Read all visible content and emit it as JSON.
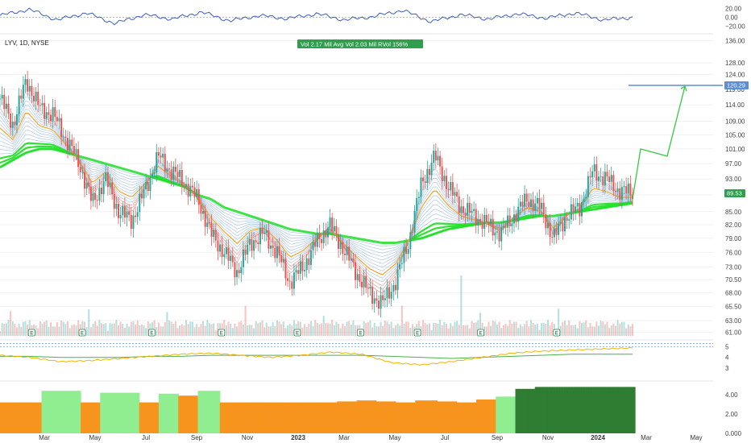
{
  "symbol_label": "LYV, 1D, NYSE",
  "stats": {
    "text": "Vol 2.17 Mil   Avg Vol 2.03 Mil   RVol 156%",
    "color": "#2e9e4f"
  },
  "last_price_label": "89.53",
  "target_label": "120.29",
  "colors": {
    "up": "#26a69a",
    "down": "#ef5350",
    "ribbon_green": "#22e02a",
    "ribbon_red": "#e06060",
    "ribbon_blue": "#7da7d9",
    "ema_orange": "#f5a623",
    "target_line": "#5b8fd6",
    "projection": "#35c940",
    "osc_line": "#3b5fc0",
    "bar_orange": "#f7941d",
    "bar_lightgreen": "#90ee90",
    "bar_darkgreen": "#2e7d32"
  },
  "chart_data": [
    {
      "type": "line",
      "name": "oscillator",
      "y_ticks": [
        "20.00",
        "0.00",
        "−20.00"
      ],
      "ylim": [
        -30,
        30
      ],
      "x": [
        0,
        0.04,
        0.08,
        0.12,
        0.16,
        0.2,
        0.24,
        0.28,
        0.32,
        0.36,
        0.4,
        0.44,
        0.48,
        0.52,
        0.56,
        0.6,
        0.64,
        0.68,
        0.72,
        0.76,
        0.8,
        0.84,
        0.88
      ],
      "values": [
        4,
        18,
        -6,
        10,
        -14,
        6,
        -4,
        12,
        -8,
        4,
        -3,
        8,
        -6,
        2,
        16,
        -10,
        6,
        -4,
        8,
        -2,
        10,
        -6,
        0
      ]
    },
    {
      "type": "candlestick",
      "name": "price",
      "x_ticks": [
        "Mar",
        "May",
        "Jul",
        "Sep",
        "Nov",
        "2023",
        "Mar",
        "May",
        "Jul",
        "Sep",
        "Nov",
        "2024",
        "Mar",
        "May"
      ],
      "y_ticks": [
        "136.00",
        "128.00",
        "124.00",
        "119.00",
        "114.00",
        "109.00",
        "105.00",
        "101.00",
        "97.00",
        "93.00",
        "89.00",
        "85.00",
        "82.00",
        "79.00",
        "76.00",
        "73.00",
        "70.50",
        "68.00",
        "65.50",
        "63.00",
        "61.00"
      ],
      "scale": "log",
      "ylim": [
        60,
        138
      ],
      "series": [
        {
          "name": "close",
          "values": [
            116,
            108,
            122,
            113,
            111,
            104,
            97,
            87,
            93,
            85,
            83,
            90,
            99,
            95,
            92,
            88,
            80,
            76,
            72,
            78,
            80,
            76,
            70,
            73,
            78,
            82,
            77,
            72,
            68,
            66,
            70,
            78,
            92,
            99,
            91,
            86,
            84,
            82,
            80,
            84,
            88,
            86,
            79,
            84,
            86,
            95,
            93,
            90,
            89.53
          ]
        },
        {
          "name": "ribbon_slow",
          "values": [
            96,
            98,
            100,
            101,
            101,
            100,
            99,
            98,
            97,
            96,
            95,
            94,
            93,
            92,
            91,
            89,
            88,
            86,
            85,
            84,
            83,
            82,
            81,
            80.5,
            80,
            80,
            79.5,
            79,
            78.5,
            78,
            78,
            78.5,
            79,
            80,
            81,
            81.5,
            82,
            82.5,
            82.5,
            83,
            83.5,
            84,
            84,
            84.5,
            85,
            85.5,
            86,
            86.5,
            87
          ]
        }
      ],
      "events": [
        {
          "label": "E",
          "x": 0.05
        },
        {
          "label": "E",
          "x": 0.13
        },
        {
          "label": "E",
          "x": 0.24
        },
        {
          "label": "E",
          "x": 0.35
        },
        {
          "label": "E",
          "x": 0.47
        },
        {
          "label": "E",
          "x": 0.57
        },
        {
          "label": "E",
          "x": 0.66
        },
        {
          "label": "E",
          "x": 0.76
        },
        {
          "label": "E",
          "x": 0.88
        }
      ],
      "target": {
        "value": 120.29
      },
      "projection": {
        "values": [
          88,
          101,
          99,
          120
        ]
      }
    },
    {
      "type": "line",
      "name": "relative_strength",
      "y_ticks": [
        "5",
        "4",
        "3"
      ],
      "ylim": [
        2,
        5.5
      ],
      "series": [
        {
          "name": "rs",
          "values": [
            4.2,
            4.0,
            3.6,
            3.7,
            3.9,
            4.1,
            4.3,
            4.4,
            4.2,
            4.0,
            4.2,
            4.5,
            4.3,
            3.5,
            3.3,
            3.6,
            4.0,
            4.4,
            4.6,
            4.7,
            4.8,
            4.9
          ]
        },
        {
          "name": "rs_ma",
          "values": [
            4.1,
            4.1,
            4.0,
            4.0,
            4.0,
            4.1,
            4.1,
            4.2,
            4.2,
            4.2,
            4.2,
            4.2,
            4.2,
            4.1,
            4.0,
            3.9,
            4.0,
            4.1,
            4.2,
            4.3,
            4.3,
            4.3
          ]
        }
      ]
    },
    {
      "type": "bar",
      "name": "histogram",
      "y_ticks": [
        "4.00",
        "2.00",
        "0.000"
      ],
      "ylim": [
        0,
        5
      ],
      "values": [
        3.2,
        3.2,
        4.4,
        4.4,
        3.2,
        4.2,
        4.2,
        3.2,
        4.1,
        3.9,
        4.4,
        3.2,
        3.2,
        3.2,
        3.2,
        3.2,
        3.2,
        3.3,
        3.4,
        3.3,
        3.2,
        3.4,
        3.3,
        3.2,
        3.5,
        3.8,
        4.6,
        4.8,
        4.8,
        4.8,
        4.8,
        4.8
      ],
      "bar_states": [
        "o",
        "o",
        "lg",
        "lg",
        "o",
        "lg",
        "lg",
        "o",
        "lg",
        "o",
        "lg",
        "o",
        "o",
        "o",
        "o",
        "o",
        "o",
        "o",
        "o",
        "o",
        "o",
        "o",
        "o",
        "o",
        "o",
        "lg",
        "dg",
        "dg",
        "dg",
        "dg",
        "dg",
        "dg"
      ]
    }
  ]
}
